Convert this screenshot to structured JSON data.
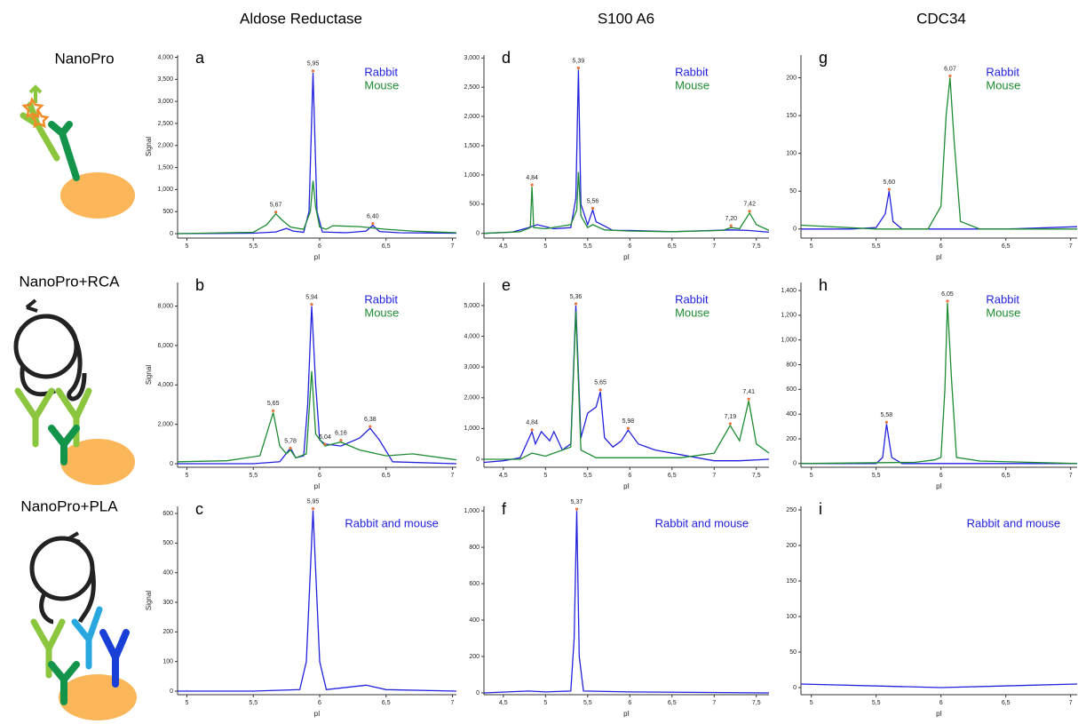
{
  "column_titles": [
    "Aldose Reductase",
    "S100 A6",
    "CDC34"
  ],
  "row_labels": [
    "NanoPro",
    "NanoPro+RCA",
    "NanoPro+PLA"
  ],
  "chart_data": [
    {
      "type": "line",
      "panel_label": "a",
      "x_label": "pI",
      "y_label": "Signal",
      "xlim": [
        4.93,
        7.03
      ],
      "xticks": [
        5,
        {
          "value": 5.5,
          "label": "5,5"
        },
        6,
        {
          "value": 6.5,
          "label": "6,5"
        },
        7
      ],
      "ylim": [
        -100,
        4050
      ],
      "yticks": [
        0,
        500,
        {
          "value": 1000,
          "label": "1,000"
        },
        {
          "value": 1500,
          "label": "1,500"
        },
        {
          "value": 2000,
          "label": "2,000"
        },
        {
          "value": 2500,
          "label": "2,500"
        },
        {
          "value": 3000,
          "label": "3,000"
        },
        {
          "value": 3500,
          "label": "3,500"
        },
        {
          "value": 4000,
          "label": "4,000"
        }
      ],
      "series": [
        {
          "name": "Rabbit",
          "color": "#2222dd",
          "x": [
            4.93,
            5.5,
            5.67,
            5.75,
            5.8,
            5.88,
            5.92,
            5.95,
            5.98,
            6.02,
            6.2,
            6.35,
            6.4,
            6.45,
            6.6,
            7.03
          ],
          "values": [
            0,
            10,
            40,
            120,
            60,
            30,
            500,
            3650,
            500,
            40,
            20,
            60,
            190,
            50,
            20,
            10
          ]
        },
        {
          "name": "Mouse",
          "color": "#1e8c32",
          "x": [
            4.93,
            5.5,
            5.6,
            5.67,
            5.72,
            5.78,
            5.88,
            5.93,
            5.95,
            5.97,
            6.0,
            6.05,
            6.1,
            6.3,
            6.5,
            6.7,
            7.03
          ],
          "values": [
            0,
            30,
            200,
            450,
            300,
            150,
            100,
            500,
            1200,
            600,
            150,
            100,
            180,
            160,
            100,
            60,
            20
          ]
        }
      ],
      "annotations": [
        {
          "label": "5,67",
          "x": 5.67,
          "y": 450
        },
        {
          "label": "5,95",
          "x": 5.95,
          "y": 3650
        },
        {
          "label": "6,40",
          "x": 6.4,
          "y": 190
        }
      ]
    },
    {
      "type": "line",
      "panel_label": "d",
      "x_label": "pI",
      "xlim": [
        4.27,
        7.65
      ],
      "xticks": [
        {
          "value": 4.5,
          "label": "4,5"
        },
        5,
        {
          "value": 5.5,
          "label": "5,5"
        },
        6,
        {
          "value": 6.5,
          "label": "6,5"
        },
        7,
        {
          "value": 7.5,
          "label": "7,5"
        }
      ],
      "ylim": [
        -80,
        3050
      ],
      "yticks": [
        0,
        500,
        {
          "value": 1000,
          "label": "1,000"
        },
        {
          "value": 1500,
          "label": "1,500"
        },
        {
          "value": 2000,
          "label": "2,000"
        },
        {
          "value": 2500,
          "label": "2,500"
        },
        {
          "value": 3000,
          "label": "3,000"
        }
      ],
      "series": [
        {
          "name": "Rabbit",
          "color": "#2222dd",
          "x": [
            4.27,
            4.6,
            4.8,
            4.9,
            5.1,
            5.3,
            5.36,
            5.39,
            5.42,
            5.5,
            5.56,
            5.6,
            5.8,
            6.0,
            6.5,
            7.2,
            7.4,
            7.65
          ],
          "values": [
            0,
            20,
            100,
            150,
            80,
            100,
            600,
            2800,
            500,
            150,
            400,
            200,
            50,
            50,
            30,
            60,
            50,
            20
          ]
        },
        {
          "name": "Mouse",
          "color": "#1e8c32",
          "x": [
            4.27,
            4.7,
            4.82,
            4.84,
            4.86,
            5.0,
            5.3,
            5.37,
            5.39,
            5.42,
            5.5,
            5.56,
            5.7,
            6.0,
            6.5,
            7.1,
            7.2,
            7.3,
            7.42,
            7.5,
            7.65
          ],
          "values": [
            0,
            30,
            100,
            800,
            100,
            80,
            150,
            400,
            1050,
            300,
            100,
            150,
            60,
            40,
            30,
            50,
            100,
            80,
            350,
            150,
            50
          ]
        }
      ],
      "annotations": [
        {
          "label": "4,84",
          "x": 4.84,
          "y": 800
        },
        {
          "label": "5,39",
          "x": 5.39,
          "y": 2800
        },
        {
          "label": "5,56",
          "x": 5.56,
          "y": 400
        },
        {
          "label": "7,20",
          "x": 7.2,
          "y": 100
        },
        {
          "label": "7,42",
          "x": 7.42,
          "y": 350
        }
      ]
    },
    {
      "type": "line",
      "panel_label": "g",
      "x_label": "pI",
      "xlim": [
        4.92,
        7.05
      ],
      "xticks": [
        5,
        {
          "value": 5.5,
          "label": "5,5"
        },
        6,
        {
          "value": 6.5,
          "label": "6,5"
        },
        7
      ],
      "ylim": [
        -12,
        230
      ],
      "yticks": [
        0,
        50,
        100,
        150,
        200
      ],
      "series": [
        {
          "name": "Rabbit",
          "color": "#2222dd",
          "x": [
            4.92,
            5.3,
            5.5,
            5.57,
            5.6,
            5.63,
            5.7,
            6.0,
            6.5,
            7.05
          ],
          "values": [
            0,
            0,
            2,
            20,
            50,
            10,
            0,
            0,
            0,
            3
          ]
        },
        {
          "name": "Mouse",
          "color": "#1e8c32",
          "x": [
            4.92,
            5.5,
            5.9,
            6.0,
            6.04,
            6.07,
            6.1,
            6.15,
            6.3,
            7.05
          ],
          "values": [
            5,
            0,
            0,
            30,
            150,
            200,
            120,
            10,
            0,
            0
          ]
        }
      ],
      "annotations": [
        {
          "label": "5,60",
          "x": 5.6,
          "y": 50
        },
        {
          "label": "6,07",
          "x": 6.07,
          "y": 200
        }
      ]
    },
    {
      "type": "line",
      "panel_label": "b",
      "x_label": "pI",
      "y_label": "Signal",
      "xlim": [
        4.93,
        7.03
      ],
      "xticks": [
        5,
        {
          "value": 5.5,
          "label": "5,5"
        },
        6,
        {
          "value": 6.5,
          "label": "6,5"
        },
        7
      ],
      "ylim": [
        -180,
        9200
      ],
      "yticks": [
        0,
        {
          "value": 2000,
          "label": "2,000"
        },
        {
          "value": 4000,
          "label": "4,000"
        },
        {
          "value": 6000,
          "label": "6,000"
        },
        {
          "value": 8000,
          "label": "8,000"
        }
      ],
      "series": [
        {
          "name": "Rabbit",
          "color": "#2222dd",
          "x": [
            4.93,
            5.5,
            5.7,
            5.78,
            5.82,
            5.88,
            5.91,
            5.94,
            5.97,
            6.0,
            6.04,
            6.16,
            6.3,
            6.38,
            6.45,
            6.55,
            7.03
          ],
          "values": [
            0,
            0,
            100,
            800,
            300,
            400,
            3000,
            8000,
            4000,
            1200,
            1000,
            900,
            1300,
            1800,
            1200,
            100,
            0
          ]
        },
        {
          "name": "Mouse",
          "color": "#1e8c32",
          "x": [
            4.93,
            5.3,
            5.55,
            5.65,
            5.7,
            5.75,
            5.78,
            5.82,
            5.9,
            5.94,
            5.97,
            6.04,
            6.1,
            6.16,
            6.3,
            6.5,
            6.7,
            7.03
          ],
          "values": [
            100,
            150,
            400,
            2600,
            900,
            500,
            700,
            300,
            500,
            4700,
            1500,
            900,
            1000,
            1100,
            700,
            400,
            500,
            200
          ]
        }
      ],
      "annotations": [
        {
          "label": "5,65",
          "x": 5.65,
          "y": 2600
        },
        {
          "label": "5,78",
          "x": 5.78,
          "y": 700
        },
        {
          "label": "5,94",
          "x": 5.94,
          "y": 8000
        },
        {
          "label": "6,04",
          "x": 6.04,
          "y": 900
        },
        {
          "label": "6,16",
          "x": 6.16,
          "y": 1100
        },
        {
          "label": "6,38",
          "x": 6.38,
          "y": 1800
        }
      ]
    },
    {
      "type": "line",
      "panel_label": "e",
      "x_label": "pI",
      "xlim": [
        4.27,
        7.65
      ],
      "xticks": [
        {
          "value": 4.5,
          "label": "4,5"
        },
        5,
        {
          "value": 5.5,
          "label": "5,5"
        },
        6,
        {
          "value": 6.5,
          "label": "6,5"
        },
        7,
        {
          "value": 7.5,
          "label": "7,5"
        }
      ],
      "ylim": [
        -260,
        5750
      ],
      "yticks": [
        0,
        {
          "value": 1000,
          "label": "1,000"
        },
        {
          "value": 2000,
          "label": "2,000"
        },
        {
          "value": 3000,
          "label": "3,000"
        },
        {
          "value": 4000,
          "label": "4,000"
        },
        {
          "value": 5000,
          "label": "5,000"
        }
      ],
      "series": [
        {
          "name": "Rabbit",
          "color": "#2222dd",
          "x": [
            4.27,
            4.5,
            4.7,
            4.84,
            4.88,
            4.95,
            5.05,
            5.1,
            5.2,
            5.3,
            5.36,
            5.42,
            5.5,
            5.6,
            5.65,
            5.7,
            5.8,
            5.9,
            5.98,
            6.1,
            6.3,
            6.6,
            7.0,
            7.3,
            7.65
          ],
          "values": [
            -100,
            -50,
            50,
            900,
            500,
            900,
            600,
            900,
            300,
            500,
            5000,
            700,
            1500,
            1700,
            2200,
            700,
            400,
            600,
            950,
            500,
            300,
            150,
            -50,
            -50,
            0
          ]
        },
        {
          "name": "Mouse",
          "color": "#1e8c32",
          "x": [
            4.27,
            4.7,
            4.84,
            5.0,
            5.3,
            5.36,
            5.42,
            5.6,
            6.0,
            6.6,
            7.0,
            7.19,
            7.3,
            7.41,
            7.5,
            7.65
          ],
          "values": [
            0,
            0,
            200,
            100,
            400,
            4800,
            300,
            50,
            50,
            50,
            200,
            1100,
            600,
            1900,
            500,
            200
          ]
        }
      ],
      "annotations": [
        {
          "label": "4,84",
          "x": 4.84,
          "y": 900
        },
        {
          "label": "5,36",
          "x": 5.36,
          "y": 5000
        },
        {
          "label": "5,65",
          "x": 5.65,
          "y": 2200
        },
        {
          "label": "5,98",
          "x": 5.98,
          "y": 950
        },
        {
          "label": "7,19",
          "x": 7.19,
          "y": 1100
        },
        {
          "label": "7,41",
          "x": 7.41,
          "y": 1900
        }
      ]
    },
    {
      "type": "line",
      "panel_label": "h",
      "x_label": "pI",
      "xlim": [
        4.92,
        7.05
      ],
      "xticks": [
        5,
        {
          "value": 5.5,
          "label": "5,5"
        },
        6,
        {
          "value": 6.5,
          "label": "6,5"
        },
        7
      ],
      "ylim": [
        -30,
        1465
      ],
      "yticks": [
        0,
        200,
        400,
        600,
        800,
        {
          "value": 1000,
          "label": "1,000"
        },
        {
          "value": 1200,
          "label": "1,200"
        },
        {
          "value": 1400,
          "label": "1,400"
        }
      ],
      "series": [
        {
          "name": "Rabbit",
          "color": "#2222dd",
          "x": [
            4.92,
            5.5,
            5.55,
            5.58,
            5.62,
            5.7,
            7.05
          ],
          "values": [
            0,
            0,
            50,
            320,
            50,
            0,
            0
          ]
        },
        {
          "name": "Mouse",
          "color": "#1e8c32",
          "x": [
            4.92,
            5.8,
            5.95,
            6.0,
            6.03,
            6.05,
            6.08,
            6.12,
            6.3,
            7.05
          ],
          "values": [
            0,
            10,
            30,
            50,
            600,
            1300,
            700,
            50,
            20,
            0
          ]
        }
      ],
      "annotations": [
        {
          "label": "5,58",
          "x": 5.58,
          "y": 320
        },
        {
          "label": "6,05",
          "x": 6.05,
          "y": 1300
        }
      ]
    },
    {
      "type": "line",
      "panel_label": "c",
      "x_label": "pI",
      "y_label": "Signal",
      "xlim": [
        4.93,
        7.03
      ],
      "xticks": [
        5,
        {
          "value": 5.5,
          "label": "5,5"
        },
        6,
        {
          "value": 6.5,
          "label": "6,5"
        },
        7
      ],
      "ylim": [
        -12,
        624
      ],
      "yticks": [
        0,
        100,
        200,
        300,
        400,
        500,
        600
      ],
      "series": [
        {
          "name": "Rabbit and mouse",
          "color": "#2222dd",
          "x": [
            4.93,
            5.5,
            5.85,
            5.9,
            5.95,
            6.0,
            6.05,
            6.35,
            6.5,
            7.03
          ],
          "values": [
            0,
            0,
            5,
            100,
            610,
            100,
            5,
            20,
            5,
            0
          ]
        }
      ],
      "annotations": [
        {
          "label": "5,95",
          "x": 5.95,
          "y": 610
        }
      ]
    },
    {
      "type": "line",
      "panel_label": "f",
      "x_label": "pI",
      "xlim": [
        4.27,
        7.65
      ],
      "xticks": [
        {
          "value": 4.5,
          "label": "4,5"
        },
        5,
        {
          "value": 5.5,
          "label": "5,5"
        },
        6,
        {
          "value": 6.5,
          "label": "6,5"
        },
        7,
        {
          "value": 7.5,
          "label": "7,5"
        }
      ],
      "ylim": [
        -10,
        1025
      ],
      "yticks": [
        0,
        200,
        400,
        600,
        800,
        {
          "value": 1000,
          "label": "1,000"
        }
      ],
      "series": [
        {
          "name": "Rabbit and mouse",
          "color": "#2222dd",
          "x": [
            4.27,
            4.8,
            5.0,
            5.3,
            5.34,
            5.37,
            5.4,
            5.45,
            6.0,
            7.65
          ],
          "values": [
            0,
            10,
            5,
            10,
            300,
            1000,
            200,
            10,
            5,
            0
          ]
        }
      ],
      "annotations": [
        {
          "label": "5,37",
          "x": 5.37,
          "y": 1000
        }
      ]
    },
    {
      "type": "line",
      "panel_label": "i",
      "x_label": "pI",
      "xlim": [
        4.92,
        7.05
      ],
      "xticks": [
        5,
        {
          "value": 5.5,
          "label": "5,5"
        },
        6,
        {
          "value": 6.5,
          "label": "6,5"
        },
        7
      ],
      "ylim": [
        -10,
        255
      ],
      "yticks": [
        0,
        50,
        100,
        150,
        200,
        250
      ],
      "series": [
        {
          "name": "Rabbit and mouse",
          "color": "#2222dd",
          "x": [
            4.92,
            6.0,
            7.05
          ],
          "values": [
            5,
            0,
            5
          ]
        }
      ],
      "annotations": []
    }
  ]
}
